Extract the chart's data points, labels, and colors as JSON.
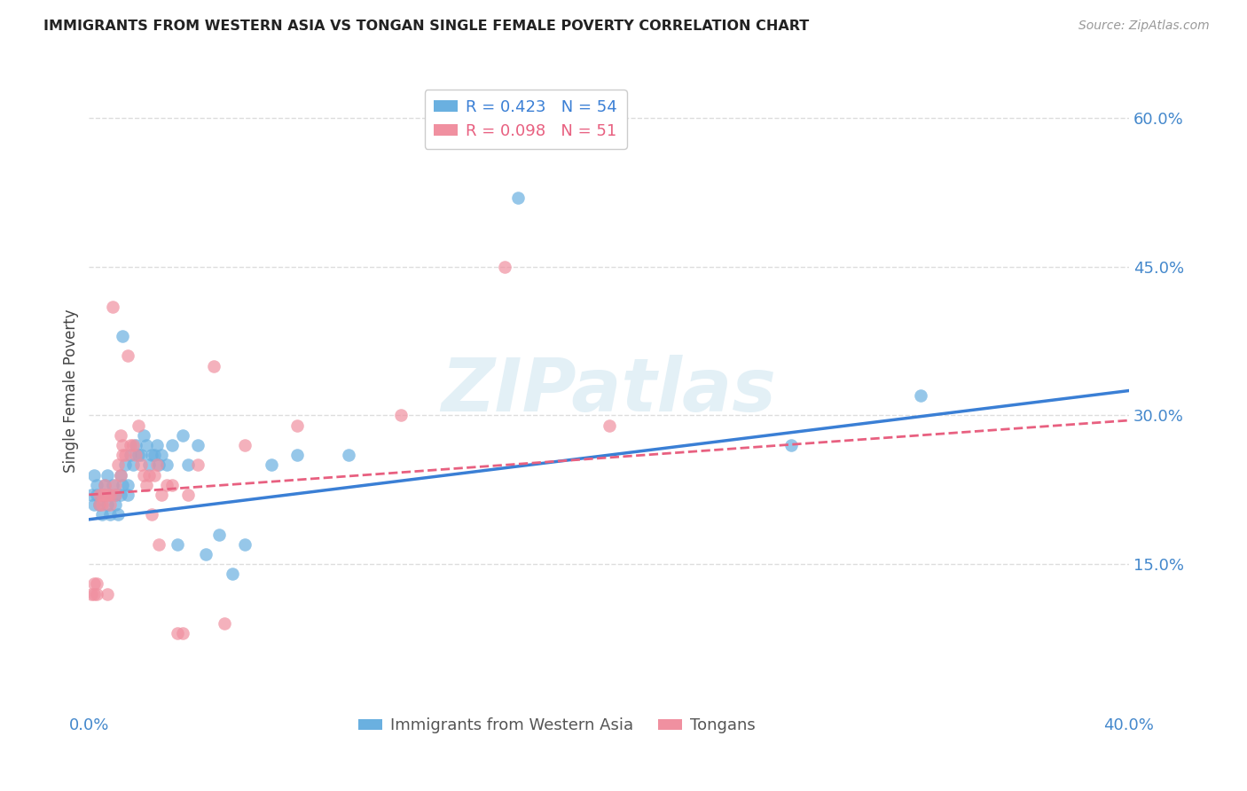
{
  "title": "IMMIGRANTS FROM WESTERN ASIA VS TONGAN SINGLE FEMALE POVERTY CORRELATION CHART",
  "source": "Source: ZipAtlas.com",
  "xlabel": "Immigrants from Western Asia",
  "ylabel": "Single Female Poverty",
  "xlim": [
    0.0,
    0.4
  ],
  "ylim": [
    0.0,
    0.65
  ],
  "y_ticks_right": [
    0.15,
    0.3,
    0.45,
    0.6
  ],
  "y_tick_labels_right": [
    "15.0%",
    "30.0%",
    "45.0%",
    "60.0%"
  ],
  "blue_color": "#6ab0e0",
  "pink_color": "#f090a0",
  "blue_line_color": "#3a7fd5",
  "pink_line_color": "#e86080",
  "legend_R_blue": "R = 0.423",
  "legend_N_blue": "N = 54",
  "legend_R_pink": "R = 0.098",
  "legend_N_pink": "N = 51",
  "watermark": "ZIPatlas",
  "background_color": "#ffffff",
  "grid_color": "#dddddd",
  "blue_scatter_x": [
    0.001,
    0.002,
    0.002,
    0.003,
    0.003,
    0.004,
    0.005,
    0.005,
    0.006,
    0.006,
    0.007,
    0.007,
    0.008,
    0.008,
    0.009,
    0.01,
    0.01,
    0.011,
    0.012,
    0.012,
    0.013,
    0.013,
    0.014,
    0.015,
    0.015,
    0.016,
    0.017,
    0.018,
    0.019,
    0.02,
    0.021,
    0.022,
    0.023,
    0.024,
    0.025,
    0.026,
    0.027,
    0.028,
    0.03,
    0.032,
    0.034,
    0.036,
    0.038,
    0.042,
    0.045,
    0.05,
    0.055,
    0.06,
    0.07,
    0.08,
    0.1,
    0.165,
    0.27,
    0.32
  ],
  "blue_scatter_y": [
    0.22,
    0.24,
    0.21,
    0.23,
    0.22,
    0.21,
    0.22,
    0.2,
    0.23,
    0.22,
    0.21,
    0.24,
    0.22,
    0.2,
    0.23,
    0.22,
    0.21,
    0.2,
    0.22,
    0.24,
    0.38,
    0.23,
    0.25,
    0.22,
    0.23,
    0.26,
    0.25,
    0.27,
    0.26,
    0.26,
    0.28,
    0.27,
    0.25,
    0.26,
    0.26,
    0.27,
    0.25,
    0.26,
    0.25,
    0.27,
    0.17,
    0.28,
    0.25,
    0.27,
    0.16,
    0.18,
    0.14,
    0.17,
    0.25,
    0.26,
    0.26,
    0.52,
    0.27,
    0.32
  ],
  "pink_scatter_x": [
    0.001,
    0.002,
    0.002,
    0.003,
    0.003,
    0.004,
    0.004,
    0.005,
    0.005,
    0.006,
    0.006,
    0.007,
    0.007,
    0.008,
    0.008,
    0.009,
    0.01,
    0.01,
    0.011,
    0.012,
    0.012,
    0.013,
    0.013,
    0.014,
    0.015,
    0.016,
    0.017,
    0.018,
    0.019,
    0.02,
    0.021,
    0.022,
    0.023,
    0.024,
    0.025,
    0.026,
    0.027,
    0.028,
    0.03,
    0.032,
    0.034,
    0.036,
    0.038,
    0.042,
    0.048,
    0.052,
    0.06,
    0.08,
    0.12,
    0.16,
    0.2
  ],
  "pink_scatter_y": [
    0.12,
    0.13,
    0.12,
    0.13,
    0.12,
    0.22,
    0.21,
    0.22,
    0.21,
    0.22,
    0.23,
    0.22,
    0.12,
    0.22,
    0.21,
    0.41,
    0.23,
    0.22,
    0.25,
    0.24,
    0.28,
    0.26,
    0.27,
    0.26,
    0.36,
    0.27,
    0.27,
    0.26,
    0.29,
    0.25,
    0.24,
    0.23,
    0.24,
    0.2,
    0.24,
    0.25,
    0.17,
    0.22,
    0.23,
    0.23,
    0.08,
    0.08,
    0.22,
    0.25,
    0.35,
    0.09,
    0.27,
    0.29,
    0.3,
    0.45,
    0.29
  ],
  "blue_trendline_x": [
    0.0,
    0.4
  ],
  "blue_trendline_y": [
    0.195,
    0.325
  ],
  "pink_trendline_x": [
    0.0,
    0.4
  ],
  "pink_trendline_y": [
    0.22,
    0.295
  ]
}
